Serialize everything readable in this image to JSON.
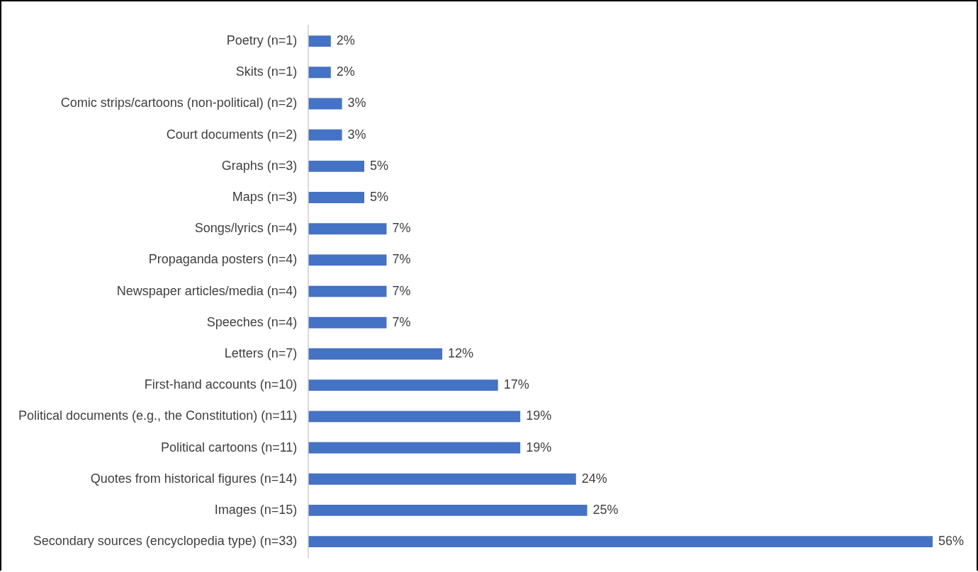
{
  "chart_data": {
    "type": "bar",
    "orientation": "horizontal",
    "categories": [
      "Poetry (n=1)",
      "Skits (n=1)",
      "Comic strips/cartoons (non-political) (n=2)",
      "Court documents (n=2)",
      "Graphs (n=3)",
      "Maps (n=3)",
      "Songs/lyrics (n=4)",
      "Propaganda posters (n=4)",
      "Newspaper articles/media (n=4)",
      "Speeches (n=4)",
      "Letters (n=7)",
      "First-hand accounts (n=10)",
      "Political documents (e.g., the Constitution) (n=11)",
      "Political cartoons (n=11)",
      "Quotes from historical figures (n=14)",
      "Images (n=15)",
      "Secondary sources (encyclopedia type) (n=33)"
    ],
    "values": [
      2,
      2,
      3,
      3,
      5,
      5,
      7,
      7,
      7,
      7,
      12,
      17,
      19,
      19,
      24,
      25,
      56
    ],
    "value_labels": [
      "2%",
      "2%",
      "3%",
      "3%",
      "5%",
      "5%",
      "7%",
      "7%",
      "7%",
      "7%",
      "12%",
      "17%",
      "19%",
      "19%",
      "24%",
      "25%",
      "56%"
    ],
    "color": "#4472c4",
    "legend": false
  }
}
